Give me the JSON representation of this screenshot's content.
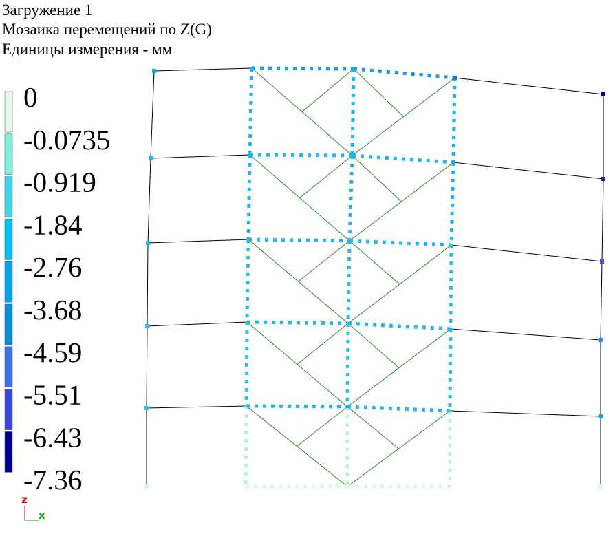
{
  "header": {
    "lines": [
      "Загружение 1",
      "Мозаика перемещений по Z(G)",
      "Единицы измерения - мм"
    ]
  },
  "legend": {
    "labels": [
      "0",
      "-0.0735",
      "-0.919",
      "-1.84",
      "-2.76",
      "-3.68",
      "-4.59",
      "-5.51",
      "-6.43",
      "-7.36"
    ],
    "colors": [
      "#e6f8ea",
      "#7ff0dc",
      "#3ed6ea",
      "#00bff0",
      "#00a6e6",
      "#0090d6",
      "#3a72ea",
      "#3a42e2",
      "#00008c"
    ]
  },
  "axes_icon": {
    "z": "z",
    "x": "x"
  }
}
